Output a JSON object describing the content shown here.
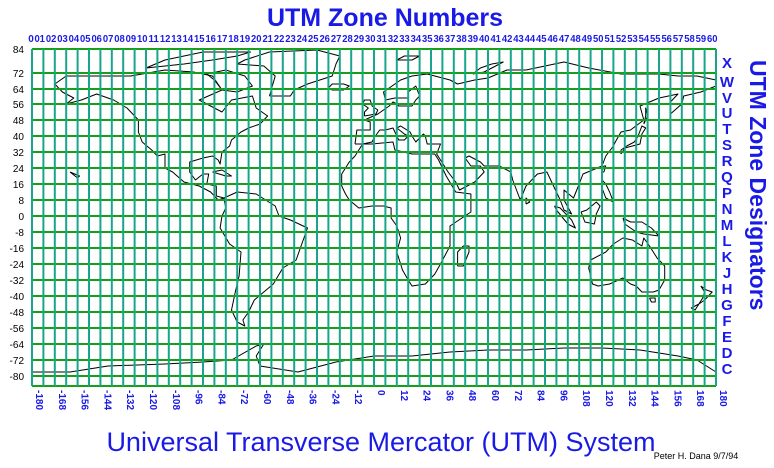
{
  "title": "UTM Zone Numbers",
  "side_title": "UTM Zone Designators",
  "bottom_title": "Universal Transverse Mercator (UTM) System",
  "credit": "Peter H. Dana 9/7/94",
  "colors": {
    "text_blue": "#1a1ae6",
    "zone_lines": "#17a68a",
    "band_lines": "#15a015",
    "coastlines": "#000000"
  },
  "zone_numbers": [
    "01",
    "02",
    "03",
    "04",
    "05",
    "06",
    "07",
    "08",
    "09",
    "10",
    "11",
    "12",
    "13",
    "14",
    "15",
    "16",
    "17",
    "18",
    "19",
    "20",
    "21",
    "22",
    "23",
    "24",
    "25",
    "26",
    "27",
    "28",
    "29",
    "30",
    "31",
    "32",
    "33",
    "34",
    "35",
    "36",
    "37",
    "38",
    "39",
    "40",
    "41",
    "42",
    "43",
    "44",
    "45",
    "46",
    "47",
    "48",
    "49",
    "50",
    "51",
    "52",
    "53",
    "54",
    "55",
    "56",
    "57",
    "58",
    "59",
    "60"
  ],
  "zone_label_0": "0",
  "latitude_labels": [
    "84",
    "72",
    "64",
    "56",
    "48",
    "40",
    "32",
    "24",
    "16",
    "8",
    "0",
    "-8",
    "-16",
    "-24",
    "-32",
    "-40",
    "-48",
    "-56",
    "-64",
    "-72",
    "-80"
  ],
  "band_designators": [
    "X",
    "W",
    "V",
    "U",
    "T",
    "S",
    "R",
    "Q",
    "P",
    "N",
    "M",
    "L",
    "K",
    "J",
    "H",
    "G",
    "F",
    "E",
    "D",
    "C"
  ],
  "longitude_labels": [
    "-180",
    "-168",
    "-156",
    "-144",
    "-132",
    "-120",
    "-108",
    "-96",
    "-84",
    "-72",
    "-60",
    "-48",
    "-36",
    "-24",
    "-12",
    "0",
    "12",
    "24",
    "36",
    "48",
    "60",
    "72",
    "84",
    "96",
    "108",
    "120",
    "132",
    "144",
    "156",
    "168",
    "180"
  ]
}
